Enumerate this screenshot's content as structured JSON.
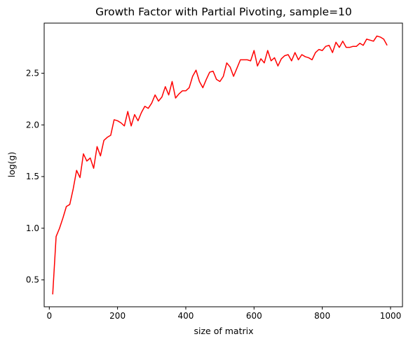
{
  "chart_data": {
    "type": "line",
    "title": "Growth Factor with Partial Pivoting, sample=10",
    "xlabel": "size of matrix",
    "ylabel": "log(g)",
    "xlim": [
      -15,
      1035
    ],
    "ylim": [
      0.24,
      2.985
    ],
    "x_ticks": [
      0,
      200,
      400,
      600,
      800,
      1000
    ],
    "x_tick_labels": [
      "0",
      "200",
      "400",
      "600",
      "800",
      "1000"
    ],
    "y_ticks": [
      0.5,
      1.0,
      1.5,
      2.0,
      2.5
    ],
    "y_tick_labels": [
      "0.5",
      "1.0",
      "1.5",
      "2.0",
      "2.5"
    ],
    "grid": false,
    "legend": "none",
    "series": [
      {
        "color": "#ff0000",
        "x": [
          10,
          20,
          30,
          40,
          50,
          60,
          70,
          80,
          90,
          100,
          110,
          120,
          130,
          140,
          150,
          160,
          170,
          180,
          190,
          200,
          210,
          220,
          230,
          240,
          250,
          260,
          270,
          280,
          290,
          300,
          310,
          320,
          330,
          340,
          350,
          360,
          370,
          380,
          390,
          400,
          410,
          420,
          430,
          440,
          450,
          460,
          470,
          480,
          490,
          500,
          510,
          520,
          530,
          540,
          550,
          560,
          570,
          580,
          590,
          600,
          610,
          620,
          630,
          640,
          650,
          660,
          670,
          680,
          690,
          700,
          710,
          720,
          730,
          740,
          750,
          760,
          770,
          780,
          790,
          800,
          810,
          820,
          830,
          840,
          850,
          860,
          870,
          880,
          890,
          900,
          910,
          920,
          930,
          940,
          950,
          960,
          970,
          980,
          990
        ],
        "y": [
          0.36,
          0.92,
          1.0,
          1.1,
          1.21,
          1.23,
          1.38,
          1.56,
          1.49,
          1.72,
          1.65,
          1.68,
          1.58,
          1.79,
          1.7,
          1.85,
          1.88,
          1.9,
          2.05,
          2.04,
          2.02,
          1.99,
          2.13,
          1.99,
          2.1,
          2.04,
          2.12,
          2.18,
          2.16,
          2.21,
          2.29,
          2.23,
          2.27,
          2.37,
          2.29,
          2.42,
          2.26,
          2.3,
          2.33,
          2.33,
          2.36,
          2.47,
          2.53,
          2.42,
          2.36,
          2.44,
          2.51,
          2.52,
          2.44,
          2.42,
          2.47,
          2.6,
          2.56,
          2.47,
          2.55,
          2.63,
          2.63,
          2.63,
          2.62,
          2.72,
          2.57,
          2.64,
          2.6,
          2.72,
          2.62,
          2.65,
          2.57,
          2.64,
          2.67,
          2.68,
          2.62,
          2.7,
          2.63,
          2.68,
          2.66,
          2.65,
          2.63,
          2.7,
          2.73,
          2.72,
          2.76,
          2.77,
          2.7,
          2.8,
          2.75,
          2.81,
          2.75,
          2.75,
          2.76,
          2.76,
          2.79,
          2.77,
          2.83,
          2.82,
          2.81,
          2.86,
          2.85,
          2.83,
          2.77
        ]
      }
    ]
  }
}
